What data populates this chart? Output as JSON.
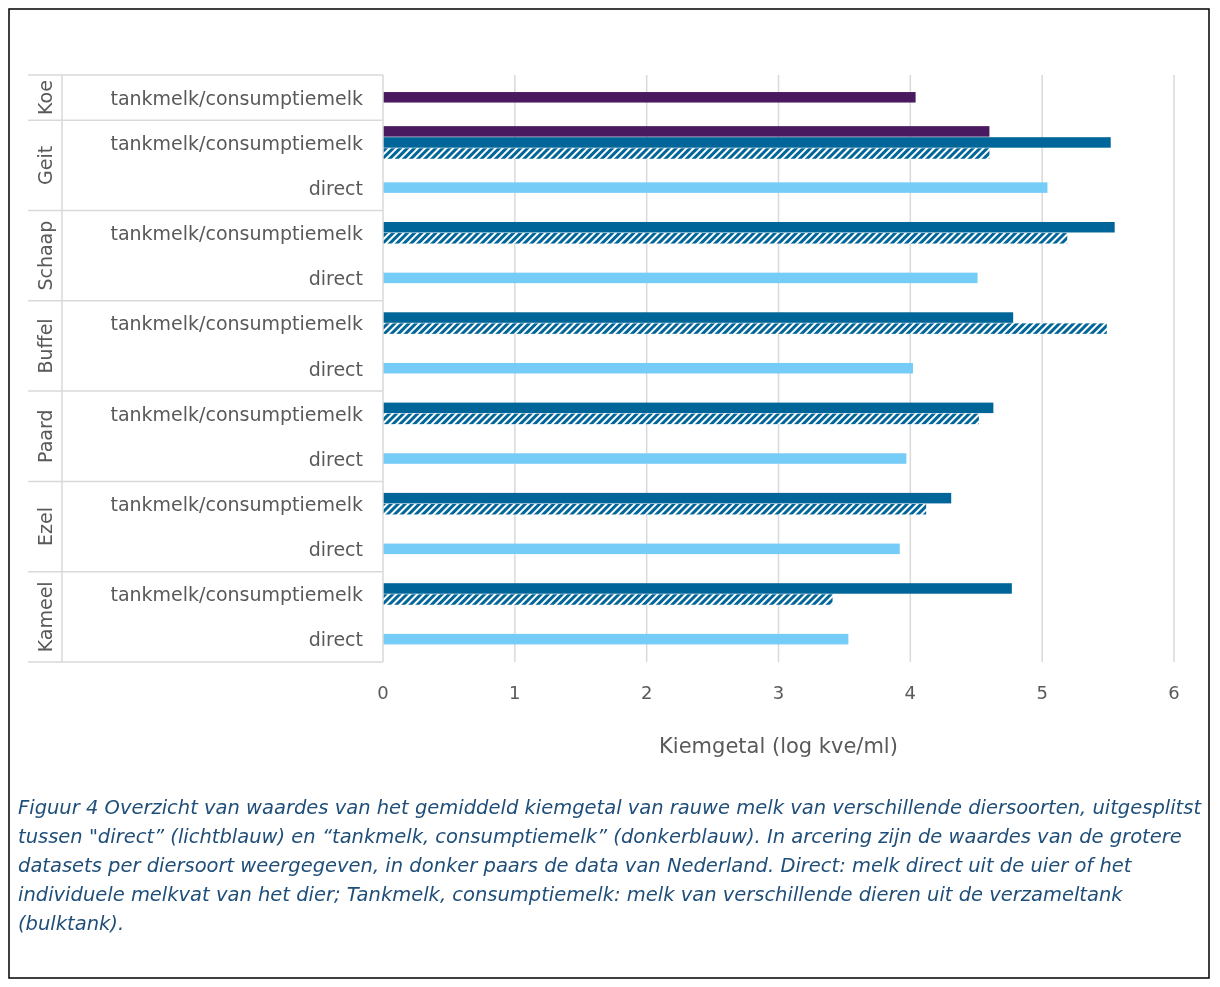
{
  "chart_data": {
    "type": "bar",
    "orientation": "horizontal",
    "xlabel": "Kiemgetal (log kve/ml)",
    "categories": [
      "tankmelk/consumptiemelk",
      "tankmelk/consumptiemelk",
      "direct",
      "tankmelk/consumptiemelk",
      "direct",
      "tankmelk/consumptiemelk",
      "direct",
      "tankmelk/consumptiemelk",
      "direct",
      "tankmelk/consumptiemelk",
      "direct",
      "tankmelk/consumptiemelk",
      "direct"
    ],
    "series": [
      {
        "color": "#4a1a60",
        "values": [
          4.04,
          4.6,
          null,
          null,
          null,
          null,
          null,
          null,
          null,
          null,
          null,
          null,
          null
        ]
      },
      {
        "color": "#006699",
        "values": [
          null,
          5.52,
          null,
          5.55,
          null,
          4.78,
          null,
          4.63,
          null,
          4.31,
          null,
          4.77,
          null
        ]
      },
      {
        "color": "#006699",
        "values": [
          null,
          4.6,
          null,
          5.19,
          null,
          5.49,
          null,
          4.52,
          null,
          4.12,
          null,
          3.41,
          null
        ]
      },
      {
        "color": "#75cdf7",
        "values": [
          null,
          null,
          5.04,
          null,
          4.51,
          null,
          4.02,
          null,
          3.97,
          null,
          3.92,
          null,
          3.53
        ]
      }
    ],
    "xlim": [
      0,
      6
    ],
    "xticks": [
      0,
      1,
      2,
      3,
      4,
      5,
      6
    ],
    "grid": "x",
    "annotations": [
      "Koe",
      "Geit",
      "Schaap",
      "Buffel",
      "Paard",
      "Ezel",
      "Kameel",
      "Figuur 4 Overzicht van waardes van het gemiddeld kiemgetal van rauwe melk van verschillende diersoorten, uitgesplitst tussen \"direct” (lichtblauw) en “tankmelk, consumptiemelk” (donkerblauw). In arcering zijn de waardes van de grotere datasets per diersoort weergegeven, in donker paars de data van Nederland. Direct: melk direct uit de uier of het individuele melkvat van het dier; Tankmelk, consumptiemelk: melk van verschillende dieren uit de verzameltank (bulktank)."
    ]
  }
}
